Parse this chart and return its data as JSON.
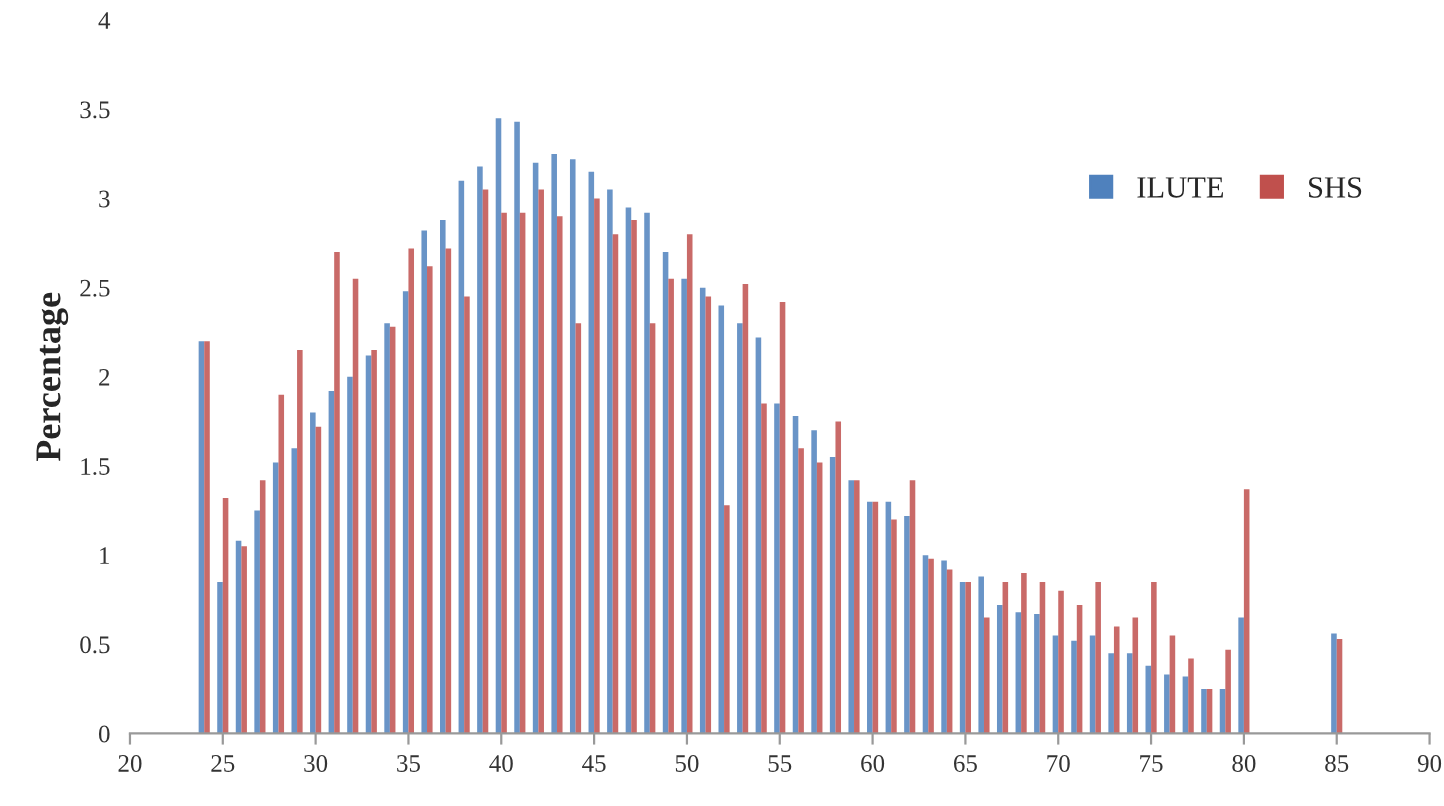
{
  "chart_data": {
    "type": "bar",
    "ylabel": "Percentage",
    "x": [
      24,
      25,
      26,
      27,
      28,
      29,
      30,
      31,
      32,
      33,
      34,
      35,
      36,
      37,
      38,
      39,
      40,
      41,
      42,
      43,
      44,
      45,
      46,
      47,
      48,
      49,
      50,
      51,
      52,
      53,
      54,
      55,
      56,
      57,
      58,
      59,
      60,
      61,
      62,
      63,
      64,
      65,
      66,
      67,
      68,
      69,
      70,
      71,
      72,
      73,
      74,
      75,
      76,
      77,
      78,
      79,
      80,
      85
    ],
    "series": [
      {
        "name": "ILUTE",
        "color": "#4f81bd",
        "values": [
          2.2,
          0.85,
          1.08,
          1.25,
          1.52,
          1.6,
          1.8,
          1.92,
          2.0,
          2.12,
          2.3,
          2.48,
          2.82,
          2.88,
          3.1,
          3.18,
          3.45,
          3.43,
          3.2,
          3.25,
          3.22,
          3.15,
          3.05,
          2.95,
          2.92,
          2.7,
          2.55,
          2.5,
          2.4,
          2.3,
          2.22,
          1.85,
          1.78,
          1.7,
          1.55,
          1.42,
          1.3,
          1.3,
          1.22,
          1.0,
          0.97,
          0.85,
          0.88,
          0.72,
          0.68,
          0.67,
          0.55,
          0.52,
          0.55,
          0.45,
          0.45,
          0.38,
          0.33,
          0.32,
          0.25,
          0.25,
          0.65,
          0.56
        ]
      },
      {
        "name": "SHS",
        "color": "#c0504d",
        "values": [
          2.2,
          1.32,
          1.05,
          1.42,
          1.9,
          2.15,
          1.72,
          2.7,
          2.55,
          2.15,
          2.28,
          2.72,
          2.62,
          2.72,
          2.45,
          3.05,
          2.92,
          2.92,
          3.05,
          2.9,
          2.3,
          3.0,
          2.8,
          2.88,
          2.3,
          2.55,
          2.8,
          2.45,
          1.28,
          2.52,
          1.85,
          2.42,
          1.6,
          1.52,
          1.75,
          1.42,
          1.3,
          1.2,
          1.42,
          0.98,
          0.92,
          0.85,
          0.65,
          0.85,
          0.9,
          0.85,
          0.8,
          0.72,
          0.85,
          0.6,
          0.65,
          0.85,
          0.55,
          0.42,
          0.25,
          0.47,
          1.37,
          0.53
        ]
      }
    ],
    "xlim": [
      20,
      90
    ],
    "xticks": [
      20,
      25,
      30,
      35,
      40,
      45,
      50,
      55,
      60,
      65,
      70,
      75,
      80,
      85,
      90
    ],
    "ylim": [
      0,
      4
    ],
    "yticks": [
      0,
      0.5,
      1,
      1.5,
      2,
      2.5,
      3,
      3.5,
      4
    ],
    "legend": "top right"
  }
}
